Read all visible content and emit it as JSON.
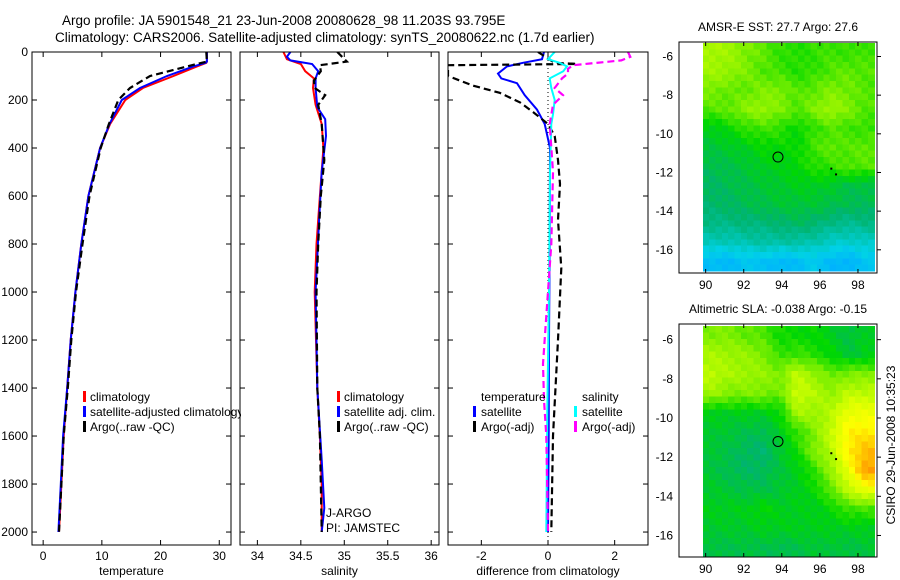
{
  "title": {
    "line1": "Argo profile: JA 5901548_21 23-Jun-2008 20080628_98 11.203S 93.795E",
    "line2": "Climatology: CARS2006. Satellite-adjusted climatology: synTS_20080622.nc (1.7d earlier)"
  },
  "footer": "CSIRO 29-Jun-2008 10:35:23",
  "annotation": {
    "line1": "J-ARGO",
    "line2": "PI: JAMSTEC"
  },
  "chart_data": [
    {
      "id": "temperature",
      "type": "line",
      "xlabel": "temperature",
      "ylabel": "",
      "xlim": [
        -1.9,
        32
      ],
      "ylim": [
        0,
        2054
      ],
      "y_reversed": true,
      "xticks": [
        0,
        10,
        20,
        30
      ],
      "yticks": [
        0,
        200,
        400,
        600,
        800,
        1000,
        1200,
        1400,
        1600,
        1800,
        2000
      ],
      "legend_headers": [],
      "series": [
        {
          "name": "climatology",
          "color": "#ff0000",
          "style": "solid",
          "depth": [
            0,
            40,
            45,
            60,
            100,
            150,
            200,
            300,
            400,
            600,
            800,
            1000,
            1200,
            1400,
            1600,
            1800,
            2000
          ],
          "values": [
            27.9,
            27.9,
            27.8,
            26.2,
            22.2,
            17.0,
            14.0,
            11.4,
            9.7,
            7.7,
            6.5,
            5.5,
            4.7,
            4.1,
            3.5,
            3.1,
            2.7
          ]
        },
        {
          "name": "satellite-adjusted climatology",
          "color": "#0000ff",
          "style": "solid",
          "depth": [
            0,
            40,
            45,
            60,
            100,
            150,
            200,
            300,
            400,
            600,
            800,
            1000,
            1200,
            1400,
            1600,
            1800,
            2000
          ],
          "values": [
            27.9,
            27.9,
            27.7,
            25.6,
            21.1,
            16.5,
            13.4,
            11.3,
            9.7,
            7.7,
            6.5,
            5.5,
            4.7,
            4.1,
            3.4,
            3.0,
            2.6
          ]
        },
        {
          "name": "Argo(..raw -QC)",
          "color": "#000000",
          "style": "dashed",
          "depth": [
            0,
            40,
            45,
            60,
            100,
            150,
            200,
            300,
            400,
            600,
            800,
            1000,
            1200,
            1400,
            1600,
            1800,
            2000
          ],
          "values": [
            27.8,
            27.9,
            27.0,
            24.5,
            18.2,
            14.8,
            12.8,
            11.2,
            9.8,
            7.9,
            6.7,
            5.6,
            4.8,
            4.2,
            3.5,
            3.1,
            2.7
          ]
        }
      ]
    },
    {
      "id": "salinity",
      "type": "line",
      "xlabel": "salinity",
      "ylabel": "",
      "xlim": [
        33.8,
        36.09
      ],
      "ylim": [
        0,
        2054
      ],
      "y_reversed": true,
      "xticks": [
        34,
        34.5,
        35,
        35.5,
        36
      ],
      "xtick_labels": [
        "34",
        "34.5",
        "35",
        "35.5",
        "36"
      ],
      "yticks": [
        0,
        200,
        400,
        600,
        800,
        1000,
        1200,
        1400,
        1600,
        1800,
        2000
      ],
      "legend_headers": [],
      "series": [
        {
          "name": "climatology",
          "color": "#ff0000",
          "style": "solid",
          "depth": [
            0,
            30,
            50,
            80,
            110,
            150,
            220,
            300,
            400,
            600,
            800,
            1000,
            1400,
            1600,
            1800,
            2000
          ],
          "values": [
            34.3,
            34.34,
            34.5,
            34.55,
            34.65,
            34.64,
            34.67,
            34.74,
            34.76,
            34.72,
            34.68,
            34.66,
            34.69,
            34.72,
            34.74,
            34.74
          ]
        },
        {
          "name": "satellite adj. clim.",
          "color": "#0000ff",
          "style": "solid",
          "depth": [
            0,
            20,
            35,
            50,
            80,
            110,
            150,
            230,
            280,
            350,
            500,
            700,
            1000,
            1400,
            1700,
            1900,
            2000
          ],
          "values": [
            34.38,
            34.34,
            34.38,
            34.63,
            34.7,
            34.67,
            34.67,
            34.69,
            34.78,
            34.79,
            34.74,
            34.71,
            34.67,
            34.69,
            34.74,
            34.77,
            34.74
          ]
        },
        {
          "name": "Argo(..raw -QC)",
          "color": "#000000",
          "style": "dashed",
          "depth": [
            0,
            40,
            55,
            80,
            120,
            150,
            180,
            220,
            300,
            450,
            600,
            800,
            1000,
            1400,
            1600,
            2000
          ],
          "values": [
            34.92,
            35.03,
            34.72,
            34.73,
            34.65,
            34.66,
            34.78,
            34.7,
            34.74,
            34.77,
            34.73,
            34.7,
            34.68,
            34.69,
            34.72,
            34.74
          ]
        }
      ]
    },
    {
      "id": "difference",
      "type": "line",
      "xlabel": "difference from climatology",
      "ylabel": "",
      "xlim": [
        -3.0,
        3.0
      ],
      "ylim": [
        0,
        2054
      ],
      "y_reversed": true,
      "xticks": [
        -2,
        0,
        2
      ],
      "xtick_labels": [
        "-2",
        "0",
        "2"
      ],
      "yticks": [
        0,
        200,
        400,
        600,
        800,
        1000,
        1200,
        1400,
        1600,
        1800,
        2000
      ],
      "zero_line": true,
      "legend_headers": [
        "temperature",
        "salinity"
      ],
      "series": [
        {
          "name": "satellite",
          "group": "temperature",
          "color": "#0000ff",
          "style": "solid",
          "depth": [
            0,
            30,
            45,
            60,
            90,
            110,
            130,
            180,
            240,
            300,
            400,
            800,
            1200,
            1600,
            2000
          ],
          "values": [
            -0.12,
            -0.18,
            -0.75,
            -1.23,
            -1.5,
            -1.4,
            -0.93,
            -0.7,
            -0.33,
            -0.1,
            0.06,
            0.05,
            0.03,
            0.02,
            0.0
          ]
        },
        {
          "name": "Argo(-adj)",
          "group": "temperature",
          "color": "#000000",
          "style": "dashed",
          "depth": [
            0,
            45,
            50,
            55,
            100,
            140,
            170,
            210,
            250,
            300,
            350,
            450,
            550,
            700,
            900,
            1200,
            1600,
            2000
          ],
          "values": [
            -0.3,
            0.2,
            0.87,
            -3.0,
            -3.0,
            -2.25,
            -1.45,
            -0.84,
            -0.45,
            0.0,
            0.2,
            0.3,
            0.36,
            0.3,
            0.4,
            0.3,
            0.15,
            0.1
          ]
        },
        {
          "name": "satellite",
          "group": "salinity",
          "color": "#00ffff",
          "style": "solid",
          "depth": [
            0,
            30,
            45,
            60,
            80,
            110,
            150,
            200,
            260,
            300,
            500,
            1000,
            1500,
            2000
          ],
          "values": [
            0.2,
            0.0,
            0.35,
            0.57,
            0.46,
            0.05,
            0.1,
            0.2,
            0.15,
            0.1,
            0.06,
            0.03,
            -0.02,
            -0.05
          ]
        },
        {
          "name": "Argo(-adj)",
          "group": "salinity",
          "color": "#ff00ff",
          "style": "dashed",
          "depth": [
            0,
            20,
            35,
            55,
            70,
            90,
            110,
            150,
            180,
            220,
            300,
            500,
            800,
            1100,
            1300,
            1450,
            1600,
            2000
          ],
          "values": [
            2.4,
            2.47,
            2.2,
            0.75,
            0.6,
            0.6,
            0.42,
            0.2,
            0.45,
            0.15,
            0.05,
            0.15,
            0.1,
            -0.05,
            -0.15,
            -0.12,
            -0.05,
            0.0
          ]
        }
      ]
    },
    {
      "id": "sst-map",
      "type": "heatmap",
      "title": "AMSR-E SST: 27.7 Argo: 27.6",
      "xlim": [
        88.6,
        99.0
      ],
      "ylim": [
        -5.25,
        -17.2
      ],
      "xticks": [
        90,
        92,
        94,
        96,
        98
      ],
      "yticks": [
        -6,
        -8,
        -10,
        -12,
        -14,
        -16
      ],
      "extent": {
        "lon": [
          89.85,
          98.85
        ],
        "lat": [
          -5.3,
          -17.1
        ]
      },
      "value_scale": "normalized colour index 0-1",
      "float_position": [
        93.8,
        -11.2
      ],
      "other_positions": [
        [
          96.6,
          -11.8
        ],
        [
          96.85,
          -12.1
        ]
      ],
      "grid": [
        [
          0.64,
          0.63,
          0.6,
          0.58,
          0.55,
          0.54,
          0.55,
          0.56,
          0.55,
          0.56
        ],
        [
          0.63,
          0.62,
          0.6,
          0.57,
          0.56,
          0.54,
          0.55,
          0.57,
          0.58,
          0.57
        ],
        [
          0.6,
          0.58,
          0.58,
          0.6,
          0.6,
          0.57,
          0.58,
          0.6,
          0.59,
          0.57
        ],
        [
          0.57,
          0.58,
          0.61,
          0.62,
          0.6,
          0.57,
          0.6,
          0.63,
          0.6,
          0.57
        ],
        [
          0.5,
          0.52,
          0.55,
          0.56,
          0.55,
          0.52,
          0.55,
          0.57,
          0.56,
          0.55
        ],
        [
          0.48,
          0.49,
          0.5,
          0.52,
          0.52,
          0.52,
          0.56,
          0.58,
          0.57,
          0.58
        ],
        [
          0.46,
          0.47,
          0.48,
          0.5,
          0.5,
          0.52,
          0.54,
          0.55,
          0.57,
          0.57
        ],
        [
          0.45,
          0.46,
          0.47,
          0.48,
          0.49,
          0.5,
          0.5,
          0.49,
          0.47,
          0.47
        ],
        [
          0.44,
          0.45,
          0.46,
          0.47,
          0.48,
          0.48,
          0.48,
          0.47,
          0.46,
          0.46
        ],
        [
          0.42,
          0.42,
          0.43,
          0.43,
          0.44,
          0.45,
          0.44,
          0.42,
          0.41,
          0.42
        ],
        [
          0.37,
          0.37,
          0.38,
          0.39,
          0.39,
          0.39,
          0.38,
          0.36,
          0.35,
          0.36
        ],
        [
          0.28,
          0.27,
          0.3,
          0.29,
          0.27,
          0.28,
          0.31,
          0.27,
          0.26,
          0.3
        ]
      ]
    },
    {
      "id": "sla-map",
      "type": "heatmap",
      "title": "Altimetric SLA: -0.038 Argo: -0.15",
      "xlim": [
        88.6,
        99.0
      ],
      "ylim": [
        -5.2,
        -17.1
      ],
      "xticks": [
        90,
        92,
        94,
        96,
        98
      ],
      "yticks": [
        -6,
        -8,
        -10,
        -12,
        -14,
        -16
      ],
      "extent": {
        "lon": [
          89.85,
          98.85
        ],
        "lat": [
          -5.3,
          -17.1
        ]
      },
      "value_scale": "normalized colour index 0-1",
      "float_position": [
        93.8,
        -11.2
      ],
      "other_positions": [
        [
          96.6,
          -11.8
        ],
        [
          96.85,
          -12.1
        ]
      ],
      "grid": [
        [
          0.6,
          0.6,
          0.58,
          0.57,
          0.53,
          0.52,
          0.52,
          0.5,
          0.47,
          0.5
        ],
        [
          0.64,
          0.63,
          0.62,
          0.6,
          0.55,
          0.56,
          0.54,
          0.52,
          0.48,
          0.5
        ],
        [
          0.66,
          0.64,
          0.63,
          0.62,
          0.6,
          0.66,
          0.62,
          0.58,
          0.6,
          0.6
        ],
        [
          0.63,
          0.6,
          0.6,
          0.6,
          0.58,
          0.68,
          0.65,
          0.62,
          0.66,
          0.66
        ],
        [
          0.5,
          0.5,
          0.5,
          0.5,
          0.52,
          0.64,
          0.63,
          0.65,
          0.72,
          0.72
        ],
        [
          0.49,
          0.48,
          0.47,
          0.46,
          0.5,
          0.55,
          0.6,
          0.67,
          0.76,
          0.77
        ],
        [
          0.48,
          0.47,
          0.45,
          0.44,
          0.48,
          0.53,
          0.6,
          0.65,
          0.77,
          0.82
        ],
        [
          0.48,
          0.46,
          0.45,
          0.45,
          0.48,
          0.5,
          0.55,
          0.62,
          0.72,
          0.85
        ],
        [
          0.49,
          0.48,
          0.47,
          0.47,
          0.48,
          0.5,
          0.52,
          0.58,
          0.66,
          0.72
        ],
        [
          0.5,
          0.5,
          0.5,
          0.52,
          0.5,
          0.5,
          0.5,
          0.52,
          0.56,
          0.56
        ],
        [
          0.49,
          0.49,
          0.49,
          0.5,
          0.5,
          0.5,
          0.5,
          0.5,
          0.5,
          0.5
        ],
        [
          0.47,
          0.47,
          0.47,
          0.47,
          0.46,
          0.47,
          0.48,
          0.48,
          0.47,
          0.48
        ]
      ]
    }
  ]
}
